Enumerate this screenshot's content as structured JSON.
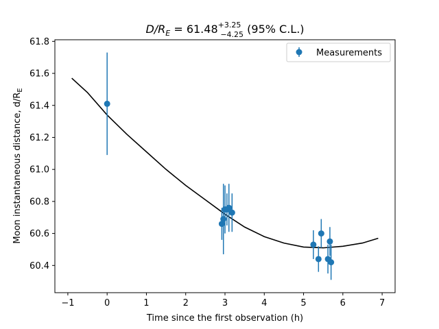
{
  "chart_data": {
    "type": "scatter",
    "title": {
      "main": "D/R",
      "main_sub": "E",
      "value": " = 61.48",
      "sup": "+3.25",
      "sub": "−4.25",
      "suffix": " (95% C.L.)"
    },
    "xlabel": "Time since the first observation (h)",
    "ylabel": {
      "text": "Moon instantaneous distance, d/R",
      "sub": "E"
    },
    "xlim": [
      -1.33,
      7.33
    ],
    "ylim": [
      60.23,
      61.81
    ],
    "xticks": [
      -1,
      0,
      1,
      2,
      3,
      4,
      5,
      6,
      7
    ],
    "xtick_labels": [
      "−1",
      "0",
      "1",
      "2",
      "3",
      "4",
      "5",
      "6",
      "7"
    ],
    "yticks": [
      60.4,
      60.6,
      60.8,
      61.0,
      61.2,
      61.4,
      61.6,
      61.8
    ],
    "ytick_labels": [
      "60.4",
      "60.6",
      "60.8",
      "61.0",
      "61.2",
      "61.4",
      "61.6",
      "61.8"
    ],
    "grid": false,
    "legend": {
      "position": "top-right",
      "entries": [
        "Measurements"
      ]
    },
    "series": [
      {
        "name": "Measurements",
        "color": "#1f77b4",
        "points": [
          {
            "x": 0.0,
            "y": 61.41,
            "err": 0.32
          },
          {
            "x": 2.92,
            "y": 60.66,
            "err": 0.1
          },
          {
            "x": 2.96,
            "y": 60.69,
            "err": 0.22
          },
          {
            "x": 3.0,
            "y": 60.75,
            "err": 0.15
          },
          {
            "x": 3.05,
            "y": 60.75,
            "err": 0.1
          },
          {
            "x": 3.1,
            "y": 60.76,
            "err": 0.15
          },
          {
            "x": 3.18,
            "y": 60.73,
            "err": 0.12
          },
          {
            "x": 5.25,
            "y": 60.53,
            "err": 0.09
          },
          {
            "x": 5.38,
            "y": 60.44,
            "err": 0.08
          },
          {
            "x": 5.45,
            "y": 60.6,
            "err": 0.09
          },
          {
            "x": 5.62,
            "y": 60.44,
            "err": 0.09
          },
          {
            "x": 5.67,
            "y": 60.55,
            "err": 0.09
          },
          {
            "x": 5.7,
            "y": 60.42,
            "err": 0.11
          }
        ]
      }
    ],
    "fit_curve": {
      "color": "#000000",
      "points": [
        [
          -0.9,
          61.57
        ],
        [
          -0.5,
          61.48
        ],
        [
          0.0,
          61.34
        ],
        [
          0.5,
          61.22
        ],
        [
          1.0,
          61.11
        ],
        [
          1.5,
          61.0
        ],
        [
          2.0,
          60.9
        ],
        [
          2.5,
          60.81
        ],
        [
          3.0,
          60.72
        ],
        [
          3.5,
          60.64
        ],
        [
          4.0,
          60.58
        ],
        [
          4.5,
          60.54
        ],
        [
          5.0,
          60.515
        ],
        [
          5.5,
          60.51
        ],
        [
          6.0,
          60.52
        ],
        [
          6.5,
          60.54
        ],
        [
          6.9,
          60.57
        ]
      ]
    }
  }
}
